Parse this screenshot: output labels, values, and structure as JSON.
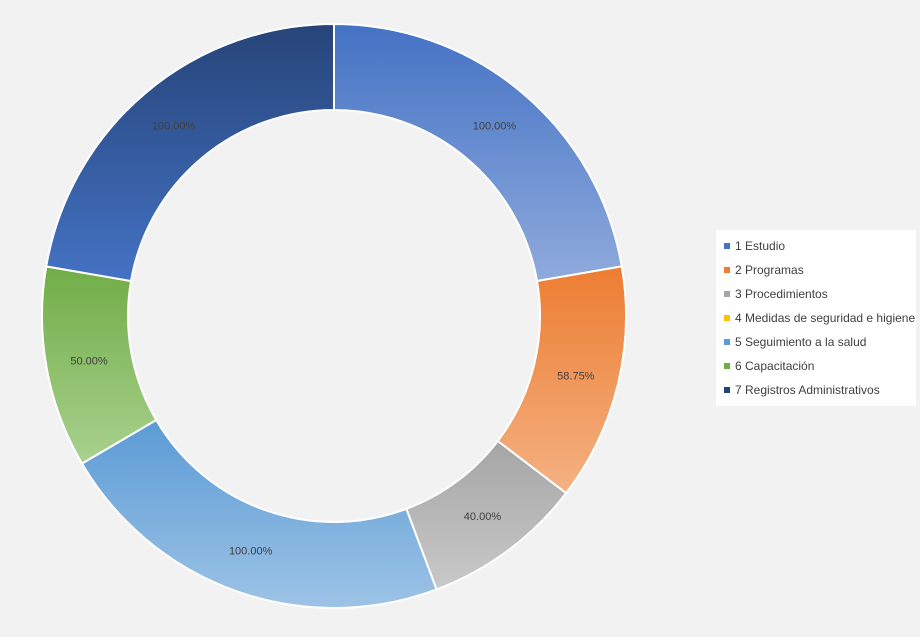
{
  "chart_data": {
    "type": "pie",
    "variant": "donut",
    "title": "",
    "legend_position": "right",
    "categories": [
      "1 Estudio",
      "2 Programas",
      "3 Procedimientos",
      "4 Medidas de seguridad e higiene",
      "5 Seguimiento a la salud",
      "6 Capacitación",
      "7 Registros Administrativos"
    ],
    "values": [
      1.0,
      0.5875,
      0.4,
      0.0,
      1.0,
      0.5,
      1.0
    ],
    "data_labels": [
      "100.00%",
      "58.75%",
      "40.00%",
      "",
      "100.00%",
      "50.00%",
      "100.00%"
    ],
    "colors": [
      "#4472c4",
      "#ed7d31",
      "#a5a5a5",
      "#ffc000",
      "#5b9bd5",
      "#70ad47",
      "#264478"
    ],
    "colors_light": [
      "#8faadc",
      "#f4b183",
      "#c9c9c9",
      "#ffd966",
      "#9dc3e6",
      "#a9d18e",
      "#4472c4"
    ]
  }
}
